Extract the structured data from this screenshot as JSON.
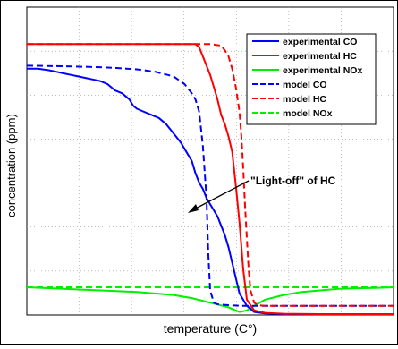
{
  "chart_data": {
    "type": "line",
    "xlabel": "temperature (C°)",
    "ylabel": "concentration (ppm)",
    "xlim": [
      0,
      100
    ],
    "ylim": [
      0,
      100
    ],
    "grid": true,
    "legend_position": "top-right",
    "annotation": "\"Light-off\" of HC",
    "series": [
      {
        "name": "experimental CO",
        "color": "#0000ff",
        "style": "solid",
        "x": [
          0,
          3,
          6,
          8,
          10,
          12,
          14,
          16,
          18,
          20,
          22,
          24,
          26,
          28,
          29,
          30,
          32,
          34,
          36,
          38,
          40,
          42,
          43,
          44,
          45,
          46,
          47,
          48,
          49,
          50,
          51,
          52,
          53,
          54,
          55,
          56,
          57,
          58,
          60,
          62,
          65,
          70,
          80,
          90,
          100
        ],
        "y": [
          80,
          80,
          79.5,
          79,
          78.5,
          78,
          77.5,
          77,
          76.5,
          76,
          75,
          73,
          72,
          70,
          68,
          67,
          66,
          65,
          64,
          62,
          59,
          56,
          54,
          52,
          50,
          46,
          43,
          41,
          38,
          36,
          34,
          32,
          29,
          26,
          22,
          17,
          12,
          7,
          3,
          1,
          0.5,
          0.3,
          0.2,
          0.2,
          0.2
        ]
      },
      {
        "name": "experimental HC",
        "color": "#ff0000",
        "style": "solid",
        "x": [
          0,
          10,
          20,
          30,
          40,
          44,
          46,
          47,
          48,
          49,
          50,
          51,
          52,
          53,
          54,
          55,
          56,
          57,
          58,
          59,
          60,
          62,
          65,
          70,
          80,
          90,
          100
        ],
        "y": [
          88,
          88,
          88,
          88,
          88,
          88,
          88,
          87,
          84,
          81,
          78,
          74,
          70,
          65,
          62,
          58,
          53,
          42,
          30,
          15,
          5,
          1.5,
          0.7,
          0.4,
          0.3,
          0.3,
          0.3
        ]
      },
      {
        "name": "experimental NOx",
        "color": "#00ee00",
        "style": "solid",
        "x": [
          0,
          10,
          20,
          30,
          40,
          45,
          50,
          55,
          58,
          60,
          62,
          65,
          70,
          75,
          80,
          85,
          90,
          95,
          100
        ],
        "y": [
          9,
          8.5,
          8,
          7.5,
          6.5,
          5.5,
          4,
          2.5,
          1,
          1.5,
          3,
          5,
          6.5,
          7.5,
          8,
          8.5,
          8.7,
          8.8,
          9
        ]
      },
      {
        "name": "model CO",
        "color": "#0000ff",
        "style": "dashed",
        "x": [
          0,
          10,
          20,
          25,
          30,
          35,
          40,
          43,
          45,
          46,
          47,
          48,
          49,
          49.5,
          50,
          51,
          52,
          55,
          58,
          60,
          100
        ],
        "y": [
          81,
          80.8,
          80.5,
          80.2,
          79.8,
          79,
          77.5,
          75,
          72,
          70,
          66,
          55,
          38,
          20,
          8,
          4,
          3.5,
          3.2,
          3,
          3,
          3
        ]
      },
      {
        "name": "model HC",
        "color": "#ff0000",
        "style": "dashed",
        "x": [
          0,
          40,
          45,
          50,
          53,
          54,
          55,
          56,
          57,
          58,
          58.5,
          59,
          59.5,
          60,
          60.5,
          61,
          62,
          63,
          65,
          70,
          100
        ],
        "y": [
          88,
          88,
          88,
          88,
          87.5,
          86,
          84,
          80,
          74,
          66,
          58,
          48,
          36,
          25,
          15,
          8,
          4,
          3.2,
          3,
          3,
          3
        ]
      },
      {
        "name": "model NOx",
        "color": "#00ee00",
        "style": "dashed",
        "x": [
          0,
          20,
          40,
          50,
          55,
          60,
          70,
          80,
          90,
          100
        ],
        "y": [
          9,
          9,
          9,
          9,
          9,
          9,
          9,
          9,
          9,
          9
        ]
      }
    ]
  }
}
